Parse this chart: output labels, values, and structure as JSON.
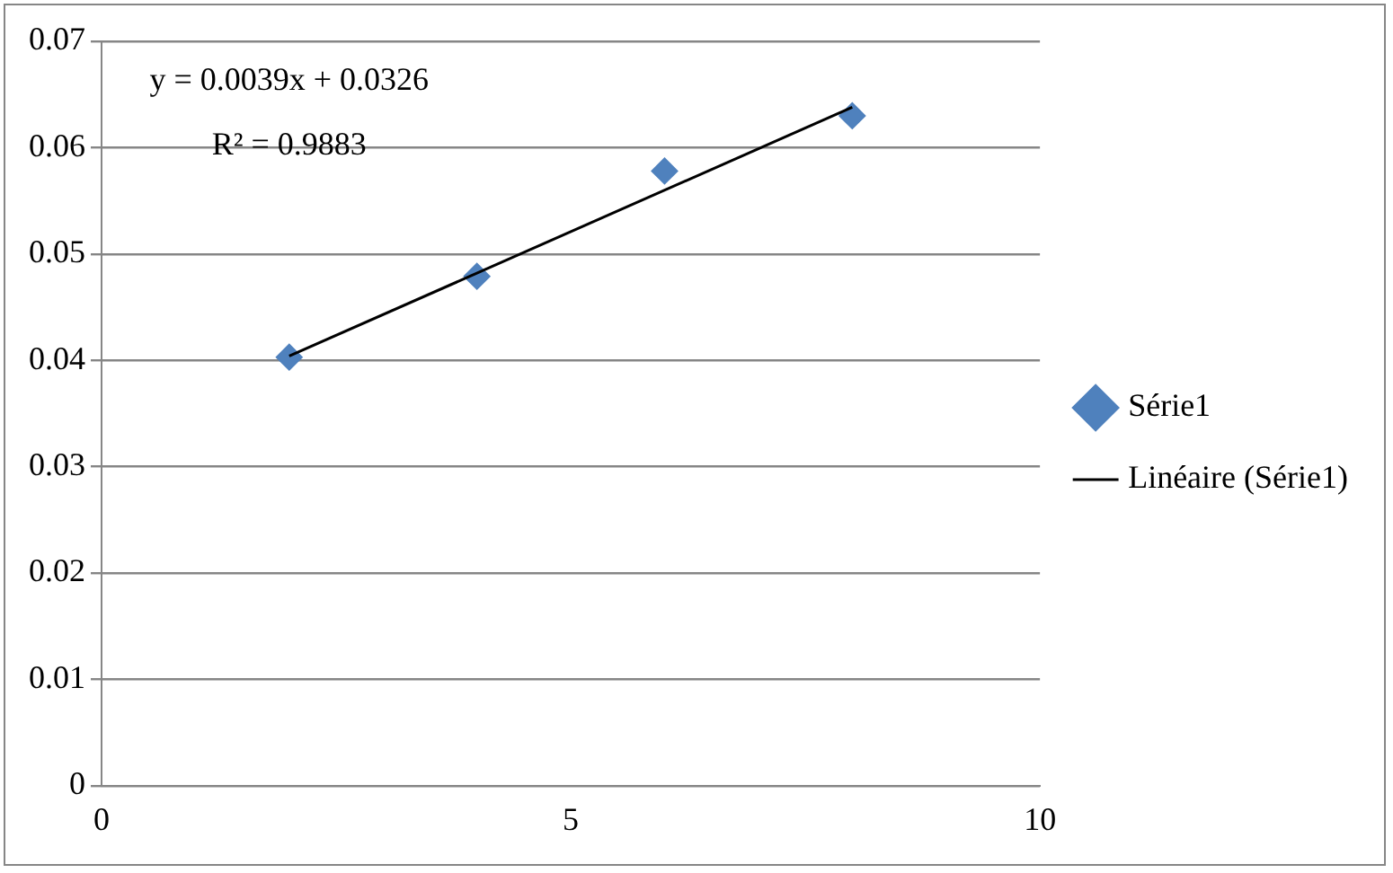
{
  "chart_data": {
    "type": "scatter",
    "xlim": [
      0,
      10
    ],
    "xticks": [
      0,
      5,
      10
    ],
    "ylim": [
      0,
      0.07
    ],
    "yticks": [
      0,
      0.01,
      0.02,
      0.03,
      0.04,
      0.05,
      0.06,
      0.07
    ],
    "grid": "y",
    "legend": "right",
    "series": [
      {
        "name": "Série1",
        "color": "#4f81bd",
        "marker": "diamond",
        "x": [
          2,
          4,
          6,
          8
        ],
        "values": [
          0.0403,
          0.0479,
          0.0578,
          0.063
        ]
      },
      {
        "name": "Linéaire (Série1)",
        "type": "line",
        "color": "#000000",
        "marker": "none",
        "line_style": "solid",
        "x": [
          2,
          8
        ],
        "values": [
          0.0404,
          0.0638
        ]
      }
    ],
    "annotations": [
      "y = 0.0039x + 0.0326",
      "R² = 0.9883"
    ]
  }
}
